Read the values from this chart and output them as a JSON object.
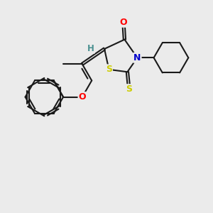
{
  "bg_color": "#ebebeb",
  "bond_color": "#1a1a1a",
  "bond_width": 1.5,
  "dbo": 0.055,
  "atom_colors": {
    "O": "#ff0000",
    "N": "#0000cc",
    "S": "#cccc00",
    "H": "#4a9090",
    "C": "#1a1a1a"
  },
  "font_size": 9,
  "font_size_H": 8.5
}
